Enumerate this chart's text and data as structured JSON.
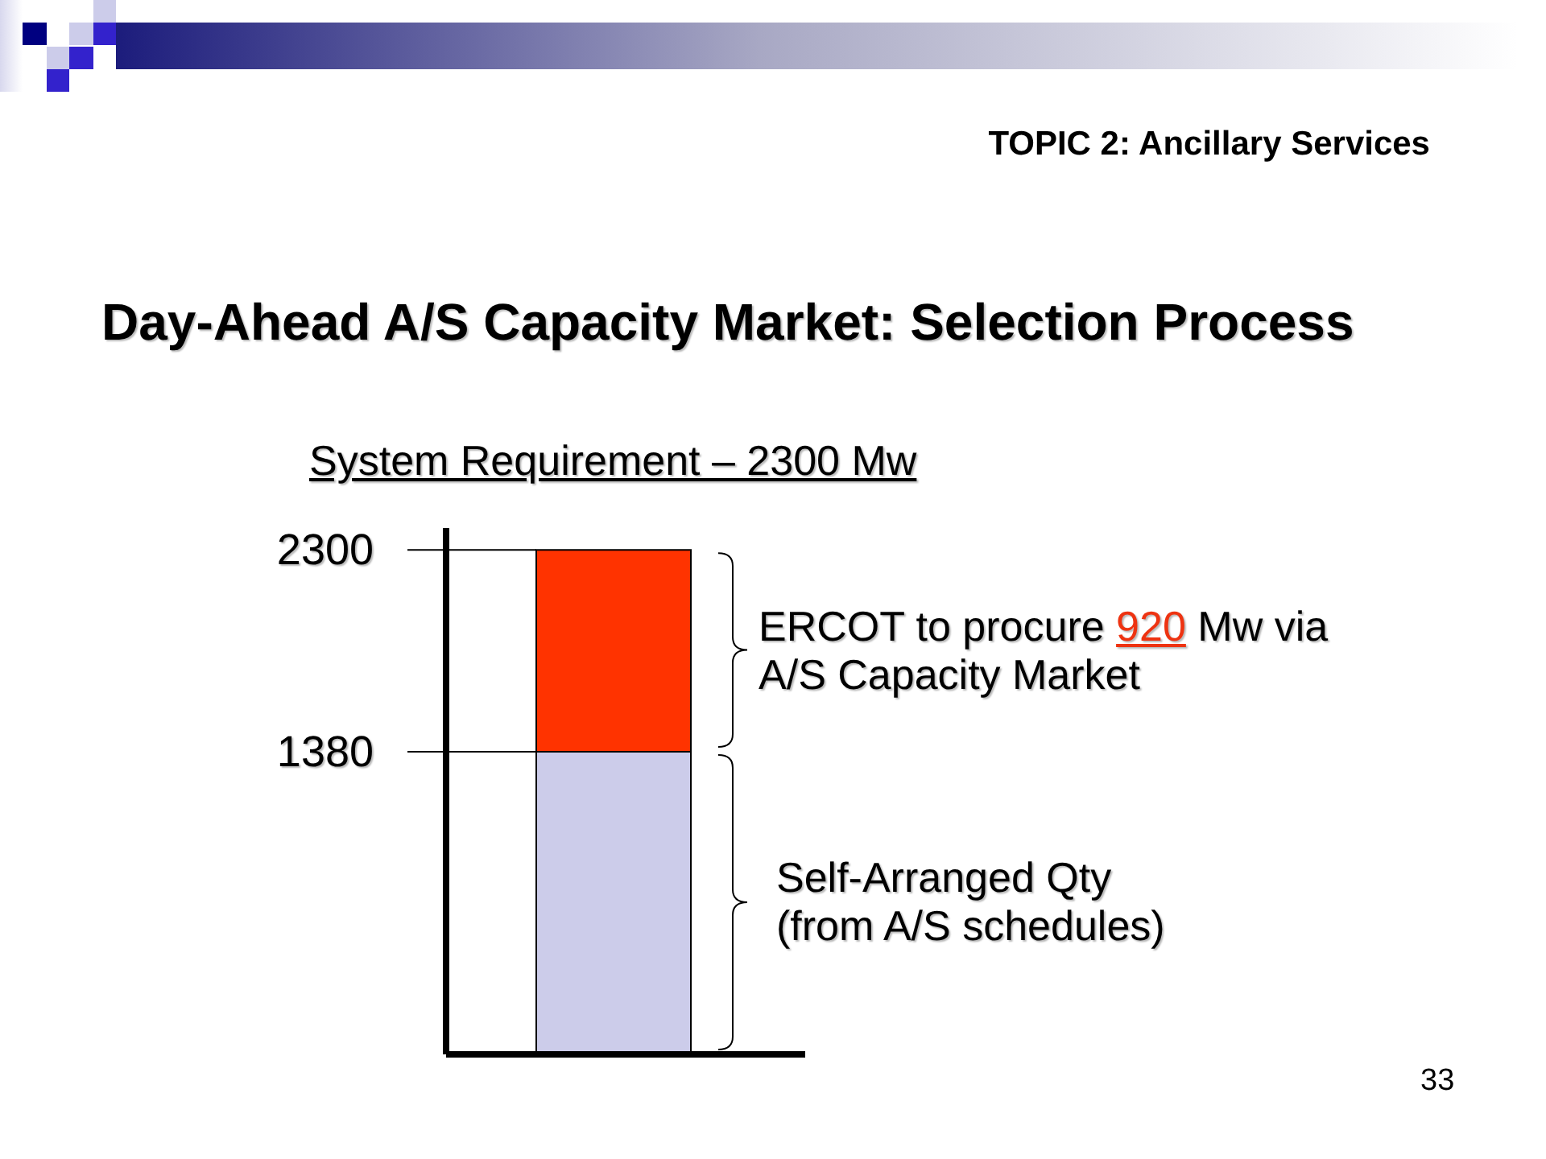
{
  "chart_data": {
    "type": "bar",
    "title": "Day-Ahead A/S Capacity Market: Selection Process",
    "subtitle": "System Requirement – 2300 Mw",
    "annotations": [
      "TOPIC 2: Ancillary Services",
      "33"
    ],
    "categories": [
      null
    ],
    "series": [
      {
        "name": "Self-Arranged Qty (from A/S schedules)",
        "color": "#ccccea",
        "values": [
          1380
        ]
      },
      {
        "name": "ERCOT to procure 920 Mw via A/S Capacity Market",
        "color": "#ff3300",
        "values": [
          920
        ]
      }
    ],
    "stacked": true,
    "ylim": [
      0,
      2400
    ],
    "yticks": [
      1380,
      2300
    ]
  }
}
